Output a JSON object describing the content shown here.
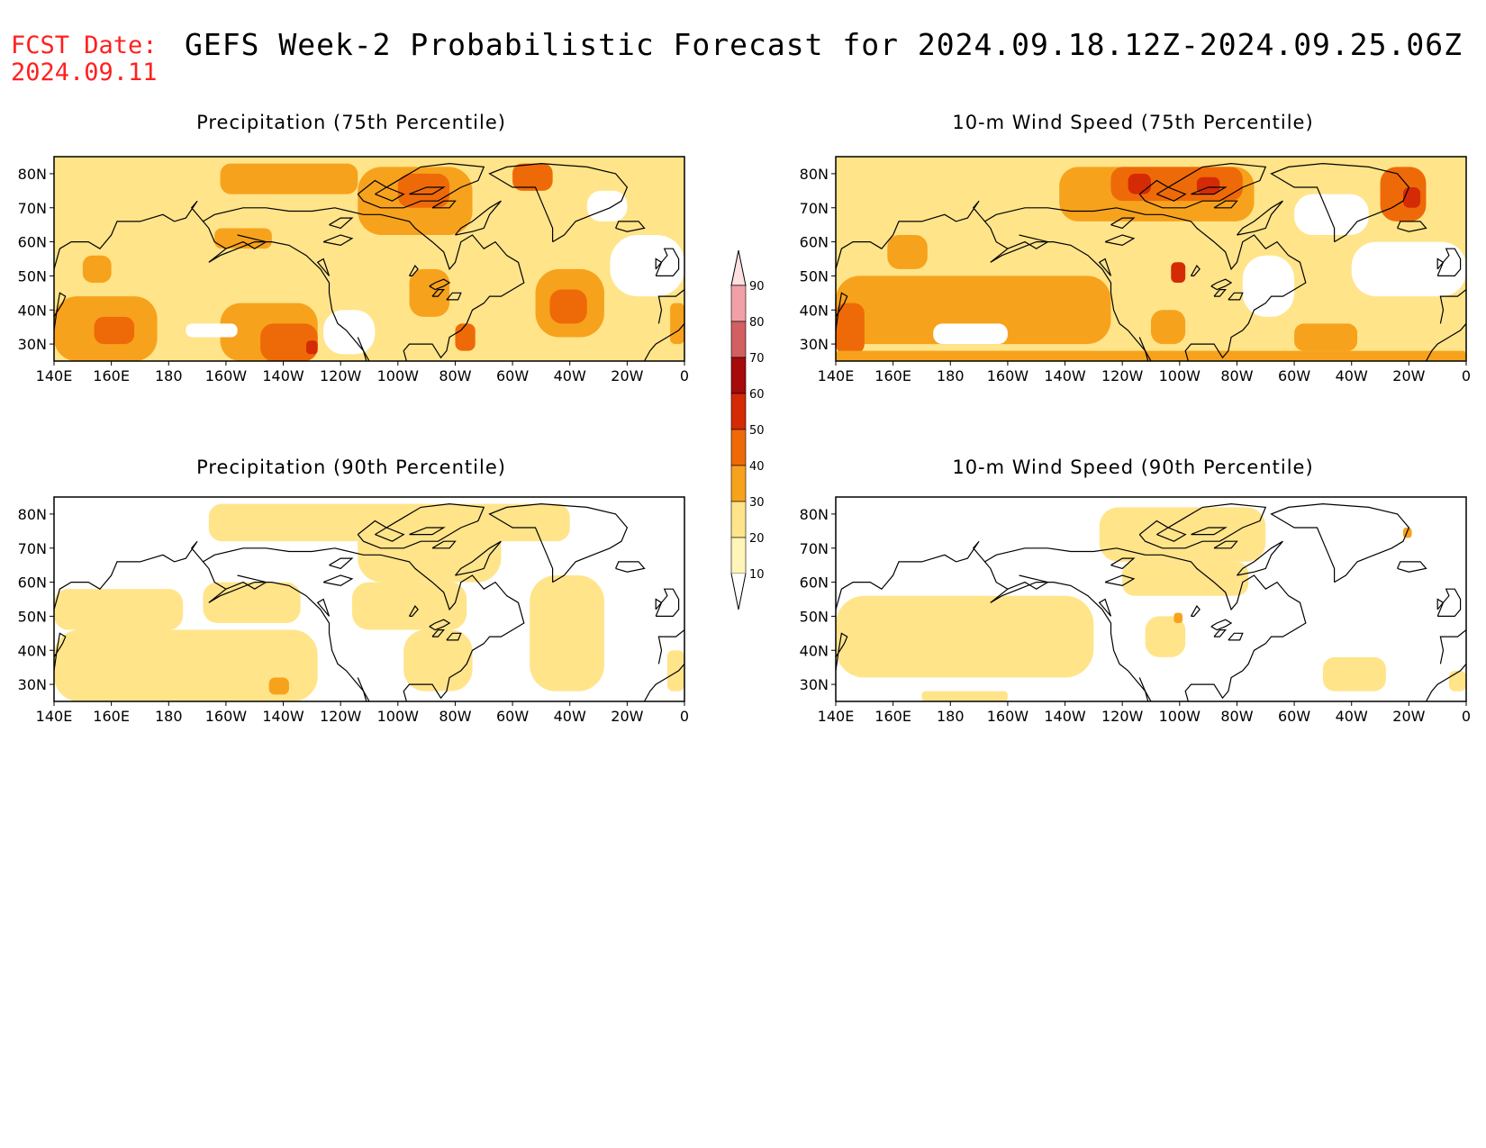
{
  "header": {
    "fcst_label": "FCST Date:",
    "fcst_date": "2024.09.11",
    "title": "GEFS Week-2 Probabilistic Forecast for 2024.09.18.12Z-2024.09.25.06Z"
  },
  "map": {
    "lon_range": [
      140,
      360
    ],
    "lat_range": [
      25,
      85
    ],
    "lon_ticks": [
      "140E",
      "160E",
      "180",
      "160W",
      "140W",
      "120W",
      "100W",
      "80W",
      "60W",
      "40W",
      "20W",
      "0"
    ],
    "lat_ticks": [
      "80N",
      "70N",
      "60N",
      "50N",
      "40N",
      "30N"
    ]
  },
  "panels": [
    {
      "title": "Precipitation (75th Percentile)",
      "base_level": 20,
      "regions": [
        {
          "lon": [
            140,
            176
          ],
          "lat": [
            25,
            44
          ],
          "level": 30
        },
        {
          "lon": [
            154,
            168
          ],
          "lat": [
            30,
            38
          ],
          "level": 40
        },
        {
          "lon": [
            198,
            246
          ],
          "lat": [
            74,
            83
          ],
          "level": 30
        },
        {
          "lon": [
            246,
            286
          ],
          "lat": [
            62,
            82
          ],
          "level": 30
        },
        {
          "lon": [
            260,
            278
          ],
          "lat": [
            70,
            80
          ],
          "level": 40
        },
        {
          "lon": [
            300,
            314
          ],
          "lat": [
            75,
            83
          ],
          "level": 40
        },
        {
          "lon": [
            198,
            232
          ],
          "lat": [
            25,
            42
          ],
          "level": 30
        },
        {
          "lon": [
            212,
            232
          ],
          "lat": [
            25,
            36
          ],
          "level": 40
        },
        {
          "lon": [
            228,
            232
          ],
          "lat": [
            27,
            31
          ],
          "level": 50
        },
        {
          "lon": [
            308,
            332
          ],
          "lat": [
            32,
            52
          ],
          "level": 30
        },
        {
          "lon": [
            313,
            326
          ],
          "lat": [
            36,
            46
          ],
          "level": 40
        },
        {
          "lon": [
            280,
            287
          ],
          "lat": [
            28,
            36
          ],
          "level": 40
        },
        {
          "lon": [
            264,
            278
          ],
          "lat": [
            38,
            52
          ],
          "level": 30
        },
        {
          "lon": [
            196,
            216
          ],
          "lat": [
            58,
            64
          ],
          "level": 30
        },
        {
          "lon": [
            150,
            160
          ],
          "lat": [
            48,
            56
          ],
          "level": 30
        },
        {
          "lon": [
            355,
            360
          ],
          "lat": [
            30,
            42
          ],
          "level": 30
        }
      ],
      "blanks": [
        {
          "lon": [
            334,
            360
          ],
          "lat": [
            44,
            62
          ]
        },
        {
          "lon": [
            234,
            252
          ],
          "lat": [
            27,
            40
          ]
        },
        {
          "lon": [
            186,
            204
          ],
          "lat": [
            32,
            36
          ]
        },
        {
          "lon": [
            326,
            340
          ],
          "lat": [
            66,
            75
          ]
        }
      ]
    },
    {
      "title": "10-m Wind Speed (75th Percentile)",
      "base_level": 20,
      "regions": [
        {
          "lon": [
            140,
            236
          ],
          "lat": [
            30,
            50
          ],
          "level": 30
        },
        {
          "lon": [
            140,
            150
          ],
          "lat": [
            27,
            42
          ],
          "level": 40
        },
        {
          "lon": [
            218,
            286
          ],
          "lat": [
            66,
            82
          ],
          "level": 30
        },
        {
          "lon": [
            236,
            282
          ],
          "lat": [
            72,
            82
          ],
          "level": 40
        },
        {
          "lon": [
            242,
            250
          ],
          "lat": [
            74,
            80
          ],
          "level": 50
        },
        {
          "lon": [
            266,
            274
          ],
          "lat": [
            74,
            79
          ],
          "level": 50
        },
        {
          "lon": [
            330,
            346
          ],
          "lat": [
            66,
            82
          ],
          "level": 40
        },
        {
          "lon": [
            338,
            344
          ],
          "lat": [
            70,
            76
          ],
          "level": 50
        },
        {
          "lon": [
            158,
            172
          ],
          "lat": [
            52,
            62
          ],
          "level": 30
        },
        {
          "lon": [
            300,
            322
          ],
          "lat": [
            28,
            36
          ],
          "level": 30
        },
        {
          "lon": [
            140,
            360
          ],
          "lat": [
            25,
            28
          ],
          "level": 30
        },
        {
          "lon": [
            257,
            262
          ],
          "lat": [
            48,
            54
          ],
          "level": 50
        },
        {
          "lon": [
            250,
            262
          ],
          "lat": [
            30,
            40
          ],
          "level": 30
        }
      ],
      "blanks": [
        {
          "lon": [
            282,
            300
          ],
          "lat": [
            38,
            56
          ]
        },
        {
          "lon": [
            300,
            326
          ],
          "lat": [
            62,
            74
          ]
        },
        {
          "lon": [
            320,
            360
          ],
          "lat": [
            44,
            60
          ]
        },
        {
          "lon": [
            174,
            200
          ],
          "lat": [
            30,
            36
          ]
        }
      ]
    },
    {
      "title": "Precipitation (90th Percentile)",
      "base_level": 0,
      "regions": [
        {
          "lon": [
            140,
            232
          ],
          "lat": [
            25,
            46
          ],
          "level": 20
        },
        {
          "lon": [
            140,
            185
          ],
          "lat": [
            46,
            58
          ],
          "level": 20
        },
        {
          "lon": [
            192,
            226
          ],
          "lat": [
            48,
            60
          ],
          "level": 20
        },
        {
          "lon": [
            194,
            320
          ],
          "lat": [
            72,
            83
          ],
          "level": 20
        },
        {
          "lon": [
            246,
            296
          ],
          "lat": [
            60,
            80
          ],
          "level": 20
        },
        {
          "lon": [
            244,
            284
          ],
          "lat": [
            46,
            60
          ],
          "level": 20
        },
        {
          "lon": [
            262,
            286
          ],
          "lat": [
            28,
            46
          ],
          "level": 20
        },
        {
          "lon": [
            306,
            332
          ],
          "lat": [
            28,
            62
          ],
          "level": 20
        },
        {
          "lon": [
            354,
            360
          ],
          "lat": [
            28,
            40
          ],
          "level": 20
        },
        {
          "lon": [
            215,
            222
          ],
          "lat": [
            27,
            32
          ],
          "level": 30
        }
      ],
      "blanks": []
    },
    {
      "title": "10-m Wind Speed (90th Percentile)",
      "base_level": 0,
      "regions": [
        {
          "lon": [
            140,
            230
          ],
          "lat": [
            32,
            56
          ],
          "level": 20
        },
        {
          "lon": [
            232,
            290
          ],
          "lat": [
            66,
            82
          ],
          "level": 20
        },
        {
          "lon": [
            240,
            284
          ],
          "lat": [
            56,
            66
          ],
          "level": 20
        },
        {
          "lon": [
            248,
            262
          ],
          "lat": [
            38,
            50
          ],
          "level": 20
        },
        {
          "lon": [
            310,
            332
          ],
          "lat": [
            28,
            38
          ],
          "level": 20
        },
        {
          "lon": [
            354,
            360
          ],
          "lat": [
            28,
            34
          ],
          "level": 20
        },
        {
          "lon": [
            170,
            200
          ],
          "lat": [
            25,
            28
          ],
          "level": 20
        },
        {
          "lon": [
            258,
            261
          ],
          "lat": [
            48,
            51
          ],
          "level": 30
        },
        {
          "lon": [
            338,
            341
          ],
          "lat": [
            73,
            76
          ],
          "level": 30
        }
      ],
      "blanks": []
    }
  ],
  "colorbar": {
    "levels": [
      "90",
      "80",
      "70",
      "60",
      "50",
      "40",
      "30",
      "20",
      "10"
    ],
    "colors": {
      "10": "#fff5b8",
      "20": "#ffe48a",
      "30": "#f7a21c",
      "40": "#ee6a08",
      "50": "#d42a05",
      "60": "#a60a0a",
      "70": "#d25f62",
      "80": "#f0a0a6",
      "90": "#ffe0e0"
    }
  }
}
